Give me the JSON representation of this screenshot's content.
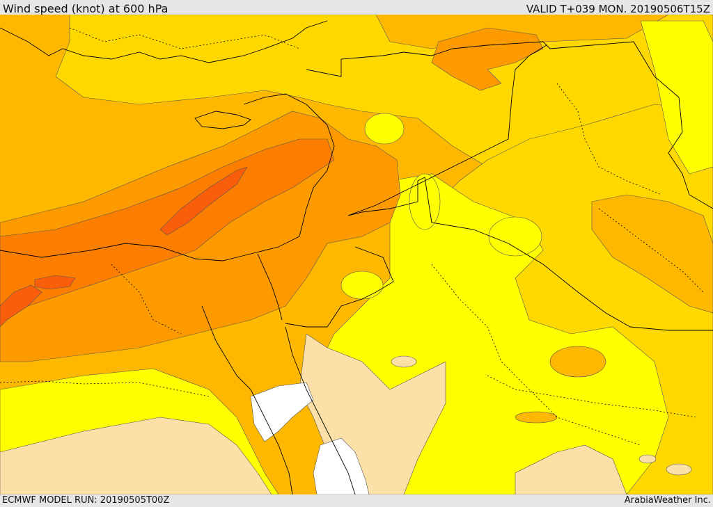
{
  "header": {
    "title": "Wind speed (knot) at 600 hPa",
    "valid": "VALID T+039 MON. 20190506T15Z"
  },
  "footer": {
    "model_run": "ECMWF MODEL RUN: 20190505T00Z",
    "credit": "ArabiaWeather Inc."
  },
  "map": {
    "fill_colors": {
      "calm_sea_white": "#ffffff",
      "light_tan": "#fde0a8",
      "yellow": "#ffff00",
      "gold": "#ffd800",
      "light_orange": "#ffb800",
      "orange": "#fd9a00",
      "dark_orange": "#fc7e00",
      "red_orange": "#fa5e0a"
    },
    "contour_line_color": "#555555",
    "border_line_color": "#000000"
  }
}
